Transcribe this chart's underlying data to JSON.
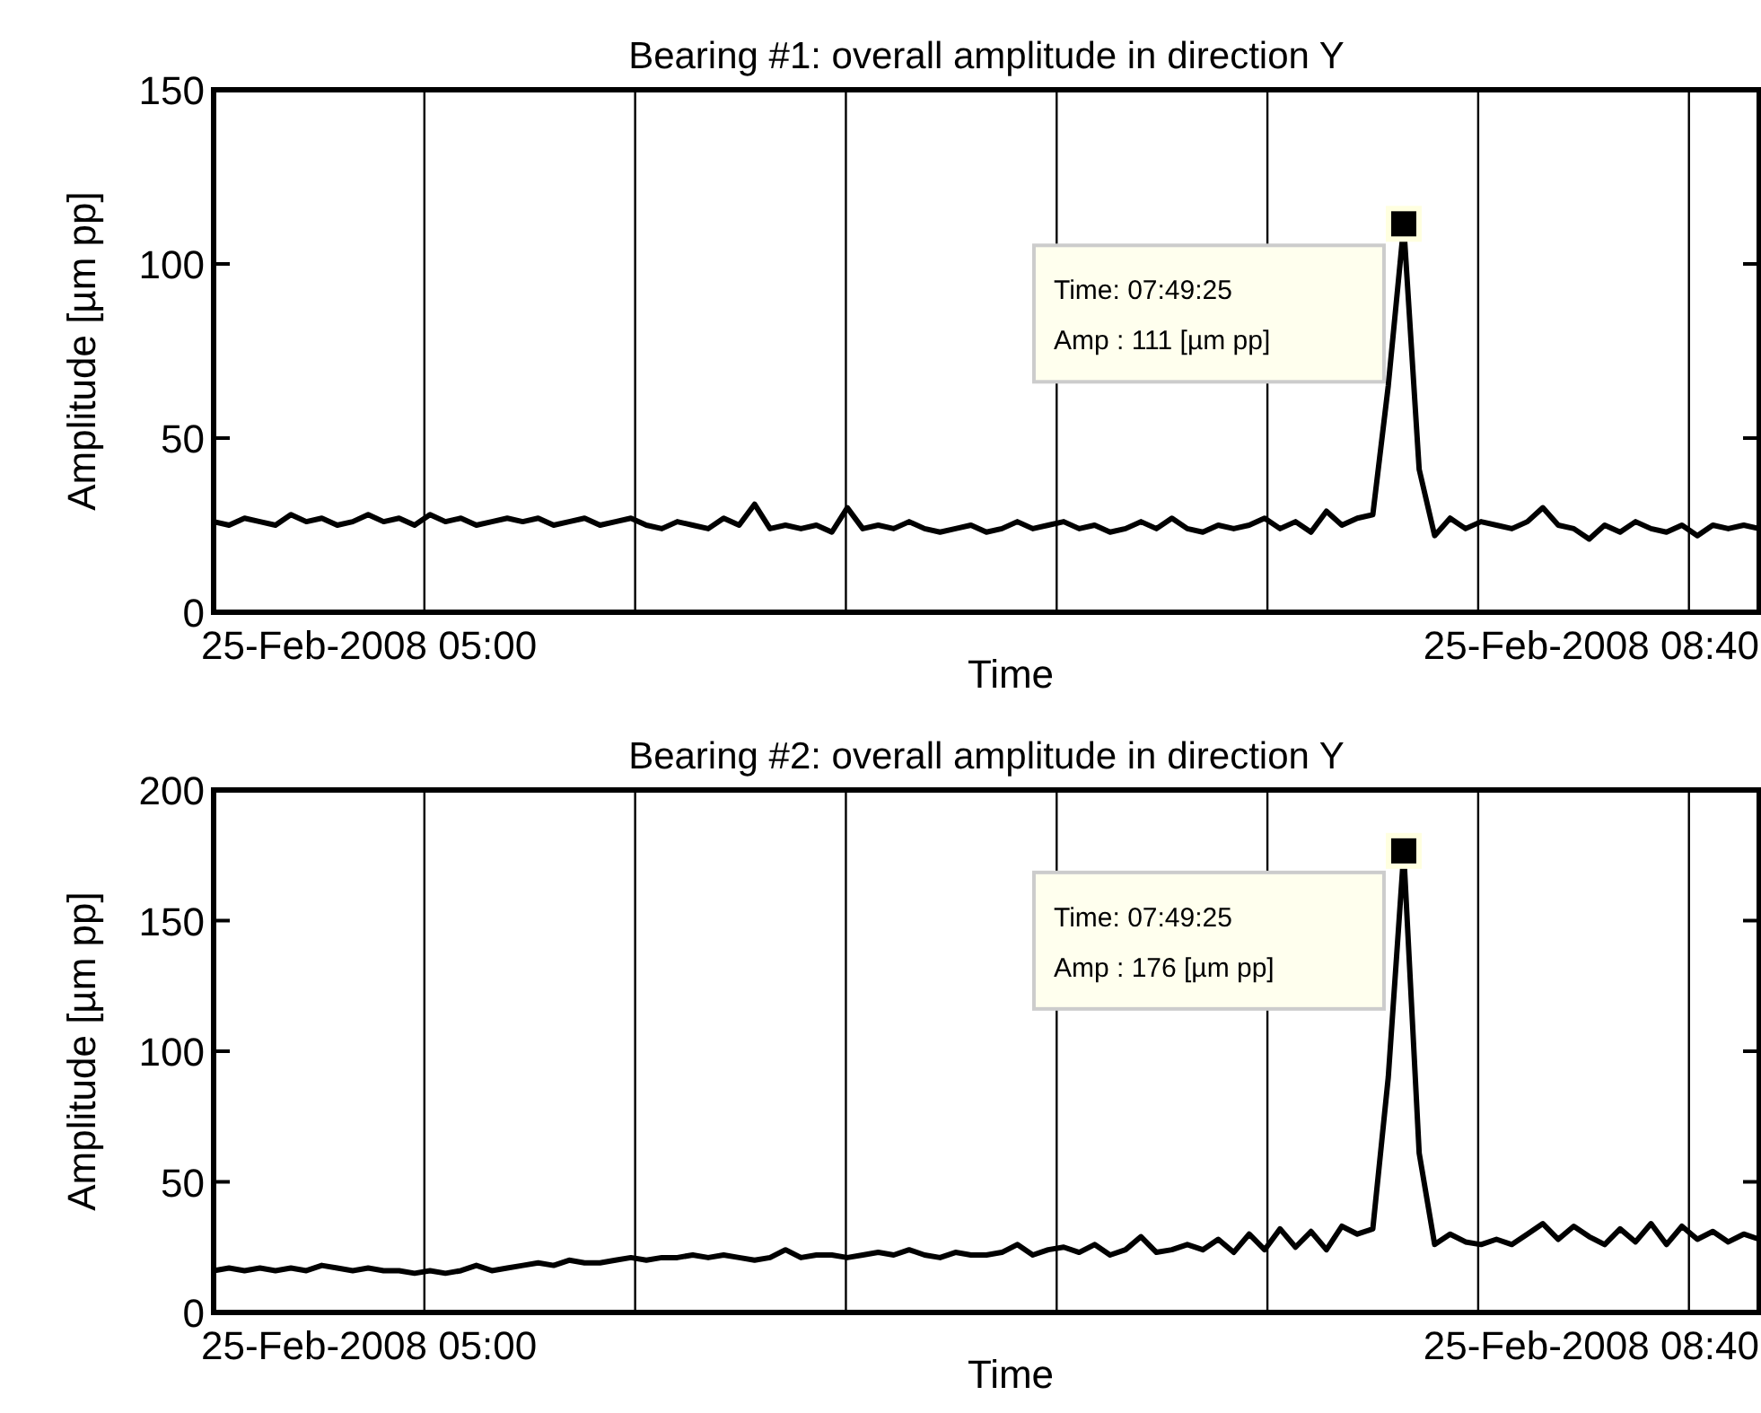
{
  "chart_data": [
    {
      "type": "line",
      "title": "Bearing #1: overall amplitude in direction Y",
      "xlabel": "Time",
      "ylabel": "Amplitude  [µm pp]",
      "categories": [
        null,
        null,
        null,
        null,
        null,
        null,
        null,
        null,
        null,
        null,
        null,
        null,
        null,
        null,
        null,
        null,
        null,
        null,
        null,
        null,
        null,
        null,
        null,
        null,
        null,
        null,
        null,
        null,
        null,
        null,
        null,
        null,
        null,
        null,
        null,
        null,
        null,
        null,
        null,
        null,
        null,
        null,
        null,
        null,
        null,
        null,
        null,
        null,
        null,
        null,
        null,
        null,
        null,
        null,
        null,
        null,
        null,
        null,
        null,
        null,
        null,
        null,
        null,
        null,
        null,
        null,
        null,
        null,
        null,
        null,
        null,
        null,
        null,
        null,
        null,
        null,
        null,
        null,
        null,
        null,
        null,
        null,
        null,
        null,
        null,
        null,
        null,
        null,
        null,
        null,
        null,
        null,
        null,
        null,
        null,
        null,
        null,
        null,
        null,
        null,
        null
      ],
      "series": [
        {
          "color": "#000000",
          "values": [
            26,
            25,
            27,
            26,
            25,
            28,
            26,
            27,
            25,
            26,
            28,
            26,
            27,
            25,
            28,
            26,
            27,
            25,
            26,
            27,
            26,
            27,
            25,
            26,
            27,
            25,
            26,
            27,
            25,
            24,
            26,
            25,
            24,
            27,
            25,
            31,
            24,
            25,
            24,
            25,
            23,
            30,
            24,
            25,
            24,
            26,
            24,
            23,
            24,
            25,
            23,
            24,
            26,
            24,
            25,
            26,
            24,
            25,
            23,
            24,
            26,
            24,
            27,
            24,
            23,
            25,
            24,
            25,
            27,
            24,
            26,
            23,
            29,
            25,
            27,
            28,
            65,
            111,
            41,
            22,
            27,
            24,
            26,
            25,
            24,
            26,
            30,
            25,
            24,
            21,
            25,
            23,
            26,
            24,
            23,
            25,
            22,
            25,
            24,
            25,
            24
          ]
        }
      ],
      "ylim": [
        0,
        150
      ],
      "yticks": [
        0,
        50,
        100,
        150
      ],
      "grid": "x",
      "tick_labels": "y",
      "line_style": "solid",
      "annotations": [
        "25-Feb-2008 05:00",
        "25-Feb-2008 08:40",
        "Time: 07:49:25\nAmp : 111 [µm pp]"
      ]
    },
    {
      "type": "line",
      "title": "Bearing #2: overall amplitude in direction Y",
      "xlabel": "Time",
      "ylabel": "Amplitude  [µm pp]",
      "categories": [
        null,
        null,
        null,
        null,
        null,
        null,
        null,
        null,
        null,
        null,
        null,
        null,
        null,
        null,
        null,
        null,
        null,
        null,
        null,
        null,
        null,
        null,
        null,
        null,
        null,
        null,
        null,
        null,
        null,
        null,
        null,
        null,
        null,
        null,
        null,
        null,
        null,
        null,
        null,
        null,
        null,
        null,
        null,
        null,
        null,
        null,
        null,
        null,
        null,
        null,
        null,
        null,
        null,
        null,
        null,
        null,
        null,
        null,
        null,
        null,
        null,
        null,
        null,
        null,
        null,
        null,
        null,
        null,
        null,
        null,
        null,
        null,
        null,
        null,
        null,
        null,
        null,
        null,
        null,
        null,
        null,
        null,
        null,
        null,
        null,
        null,
        null,
        null,
        null,
        null,
        null,
        null,
        null,
        null,
        null,
        null,
        null,
        null,
        null,
        null,
        null
      ],
      "series": [
        {
          "color": "#000000",
          "values": [
            16,
            17,
            16,
            17,
            16,
            17,
            16,
            18,
            17,
            16,
            17,
            16,
            16,
            15,
            16,
            15,
            16,
            18,
            16,
            17,
            18,
            19,
            18,
            20,
            19,
            19,
            20,
            21,
            20,
            21,
            21,
            22,
            21,
            22,
            21,
            20,
            21,
            24,
            21,
            22,
            22,
            21,
            22,
            23,
            22,
            24,
            22,
            21,
            23,
            22,
            22,
            23,
            26,
            22,
            24,
            25,
            23,
            26,
            22,
            24,
            29,
            23,
            24,
            26,
            24,
            28,
            23,
            30,
            24,
            32,
            25,
            31,
            24,
            33,
            30,
            32,
            90,
            176,
            61,
            26,
            30,
            27,
            26,
            28,
            26,
            30,
            34,
            28,
            33,
            29,
            26,
            32,
            27,
            34,
            26,
            33,
            28,
            31,
            27,
            30,
            28
          ]
        }
      ],
      "ylim": [
        0,
        200
      ],
      "yticks": [
        0,
        50,
        100,
        150,
        200
      ],
      "grid": "x",
      "tick_labels": "y",
      "line_style": "solid",
      "annotations": [
        "25-Feb-2008 05:00",
        "25-Feb-2008 08:40",
        "Time: 07:49:25\nAmp : 176 [µm pp]"
      ]
    }
  ]
}
